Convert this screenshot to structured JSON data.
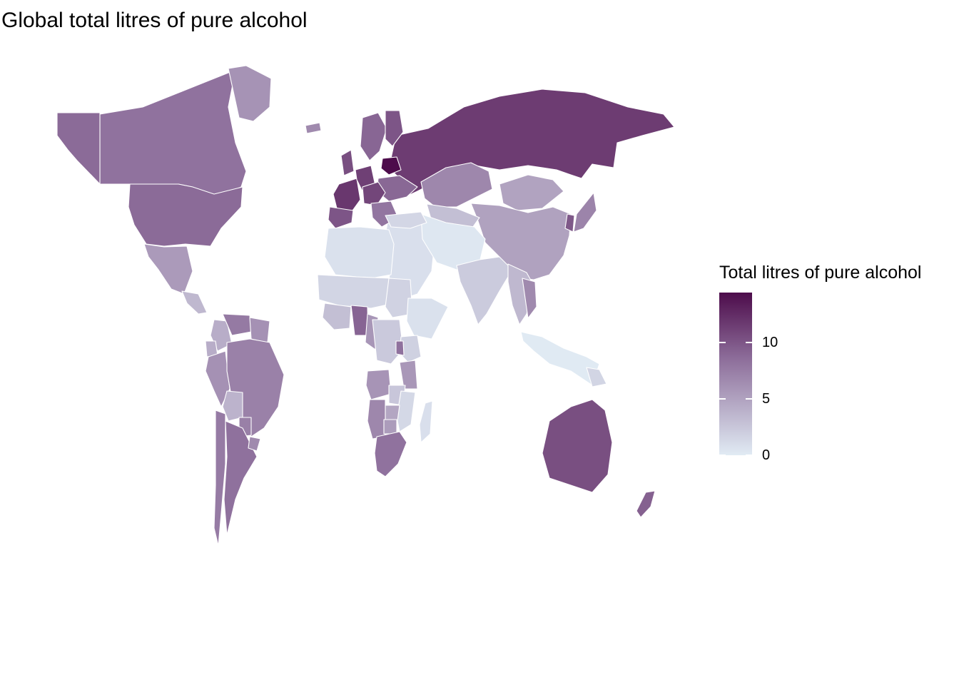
{
  "title": "Global total litres of pure alcohol",
  "legend": {
    "title": "Total litres of pure alcohol",
    "min": 0,
    "max": 14.4,
    "ticks": [
      {
        "value": 0,
        "label": "0"
      },
      {
        "value": 5,
        "label": "5"
      },
      {
        "value": 10,
        "label": "10"
      }
    ],
    "colors": {
      "low": "#e1ebf4",
      "mid": "#8c6c99",
      "high": "#4d0c4b"
    }
  },
  "map_data": {
    "type": "choropleth",
    "variable": "Total litres of pure alcohol",
    "border_color": "#ffffff",
    "regions": [
      {
        "name": "Russia",
        "value": 11.5
      },
      {
        "name": "Belarus",
        "value": 14.4
      },
      {
        "name": "Ukraine",
        "value": 8.9
      },
      {
        "name": "Kazakhstan",
        "value": 6.8
      },
      {
        "name": "Mongolia",
        "value": 4.9
      },
      {
        "name": "China",
        "value": 5.0
      },
      {
        "name": "Central Asia",
        "value": 3.0
      },
      {
        "name": "Middle East",
        "value": 0.8
      },
      {
        "name": "Iran / Afghanistan / Pakistan",
        "value": 0.3
      },
      {
        "name": "India",
        "value": 2.2
      },
      {
        "name": "Southeast Asia",
        "value": 3.5
      },
      {
        "name": "Vietnam",
        "value": 6.6
      },
      {
        "name": "Japan",
        "value": 7.0
      },
      {
        "name": "Korea",
        "value": 9.8
      },
      {
        "name": "Indonesia",
        "value": 0.1
      },
      {
        "name": "Papua New Guinea",
        "value": 1.5
      },
      {
        "name": "Australia",
        "value": 10.4
      },
      {
        "name": "New Zealand",
        "value": 9.3
      },
      {
        "name": "France",
        "value": 11.8
      },
      {
        "name": "Spain",
        "value": 10.0
      },
      {
        "name": "Germany",
        "value": 11.3
      },
      {
        "name": "United Kingdom",
        "value": 10.4
      },
      {
        "name": "Scandinavia",
        "value": 9.0
      },
      {
        "name": "Finland",
        "value": 10.0
      },
      {
        "name": "Iceland",
        "value": 6.6
      },
      {
        "name": "Central Europe",
        "value": 10.9
      },
      {
        "name": "Balkans",
        "value": 8.0
      },
      {
        "name": "Turkey",
        "value": 1.4
      },
      {
        "name": "North Africa",
        "value": 0.7
      },
      {
        "name": "Sahel",
        "value": 1.5
      },
      {
        "name": "Sudan region",
        "value": 1.7
      },
      {
        "name": "Ethiopia / Horn of Africa",
        "value": 0.7
      },
      {
        "name": "Gulf of Guinea",
        "value": 3.0
      },
      {
        "name": "Nigeria",
        "value": 9.1
      },
      {
        "name": "Cameroon",
        "value": 5.8
      },
      {
        "name": "Central Africa",
        "value": 2.3
      },
      {
        "name": "Kenya",
        "value": 1.8
      },
      {
        "name": "Uganda / Rwanda",
        "value": 8.3
      },
      {
        "name": "Tanzania",
        "value": 5.7
      },
      {
        "name": "Angola",
        "value": 5.9
      },
      {
        "name": "Zambia",
        "value": 2.5
      },
      {
        "name": "Mozambique",
        "value": 1.3
      },
      {
        "name": "Zimbabwe",
        "value": 4.7
      },
      {
        "name": "Namibia",
        "value": 6.8
      },
      {
        "name": "Botswana",
        "value": 5.4
      },
      {
        "name": "South Africa",
        "value": 8.2
      },
      {
        "name": "Madagascar",
        "value": 0.8
      },
      {
        "name": "Canada",
        "value": 8.2
      },
      {
        "name": "Alaska",
        "value": 8.7
      },
      {
        "name": "United States",
        "value": 8.7
      },
      {
        "name": "Greenland",
        "value": 6.0
      },
      {
        "name": "Mexico",
        "value": 5.5
      },
      {
        "name": "Central America",
        "value": 3.5
      },
      {
        "name": "Colombia",
        "value": 4.2
      },
      {
        "name": "Venezuela",
        "value": 7.7
      },
      {
        "name": "Guyana region",
        "value": 6.1
      },
      {
        "name": "Ecuador",
        "value": 4.2
      },
      {
        "name": "Peru",
        "value": 6.1
      },
      {
        "name": "Brazil",
        "value": 7.2
      },
      {
        "name": "Bolivia",
        "value": 3.8
      },
      {
        "name": "Paraguay",
        "value": 7.3
      },
      {
        "name": "Chile",
        "value": 7.6
      },
      {
        "name": "Argentina",
        "value": 8.3
      },
      {
        "name": "Uruguay",
        "value": 6.6
      }
    ]
  }
}
